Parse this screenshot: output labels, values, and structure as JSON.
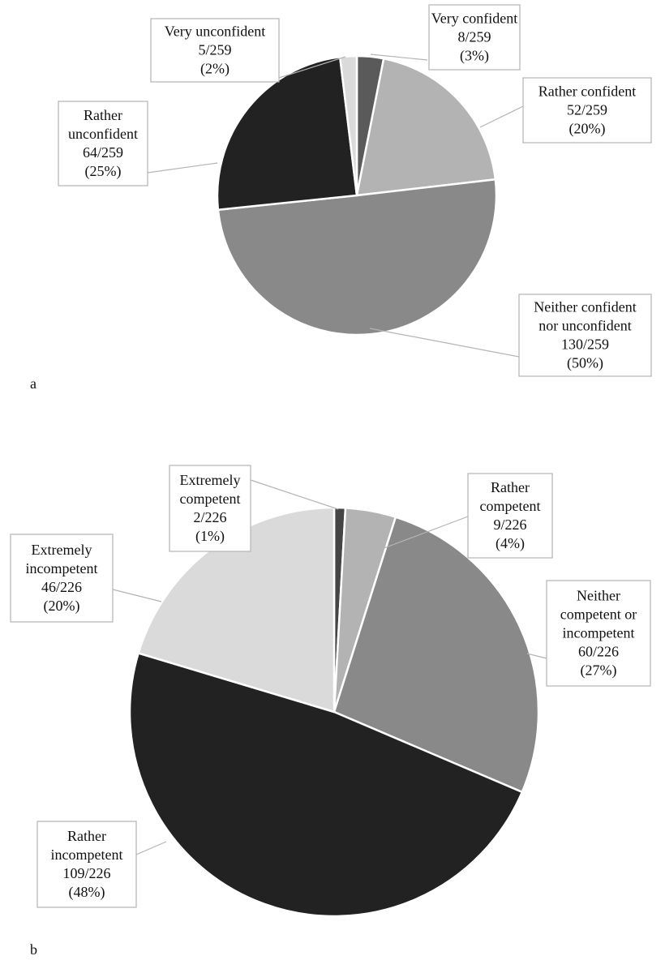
{
  "chart_data": [
    {
      "type": "pie",
      "panel": "a",
      "total": 259,
      "slices": [
        {
          "label": [
            "Very confident"
          ],
          "count": 8,
          "fraction": "8/259",
          "percent": "(3%)",
          "color": "#5a5a5a"
        },
        {
          "label": [
            "Rather confident"
          ],
          "count": 52,
          "fraction": "52/259",
          "percent": "(20%)",
          "color": "#b3b3b3"
        },
        {
          "label": [
            "Neither confident",
            "nor unconfident"
          ],
          "count": 130,
          "fraction": "130/259",
          "percent": "(50%)",
          "color": "#898989"
        },
        {
          "label": [
            "Rather",
            "unconfident"
          ],
          "count": 64,
          "fraction": "64/259",
          "percent": "(25%)",
          "color": "#222222"
        },
        {
          "label": [
            "Very unconfident"
          ],
          "count": 5,
          "fraction": "5/259",
          "percent": "(2%)",
          "color": "#dadada"
        }
      ]
    },
    {
      "type": "pie",
      "panel": "b",
      "total": 226,
      "slices": [
        {
          "label": [
            "Extremely",
            "competent"
          ],
          "count": 2,
          "fraction": "2/226",
          "percent": "(1%)",
          "color": "#454545"
        },
        {
          "label": [
            "Rather",
            "competent"
          ],
          "count": 9,
          "fraction": "9/226",
          "percent": "(4%)",
          "color": "#b3b3b3"
        },
        {
          "label": [
            "Neither",
            "competent or",
            "incompetent"
          ],
          "count": 60,
          "fraction": "60/226",
          "percent": "(27%)",
          "color": "#898989"
        },
        {
          "label": [
            "Rather",
            "incompetent"
          ],
          "count": 109,
          "fraction": "109/226",
          "percent": "(48%)",
          "color": "#222222"
        },
        {
          "label": [
            "Extremely",
            "incompetent"
          ],
          "count": 46,
          "fraction": "46/226",
          "percent": "(20%)",
          "color": "#dadada"
        }
      ]
    }
  ]
}
